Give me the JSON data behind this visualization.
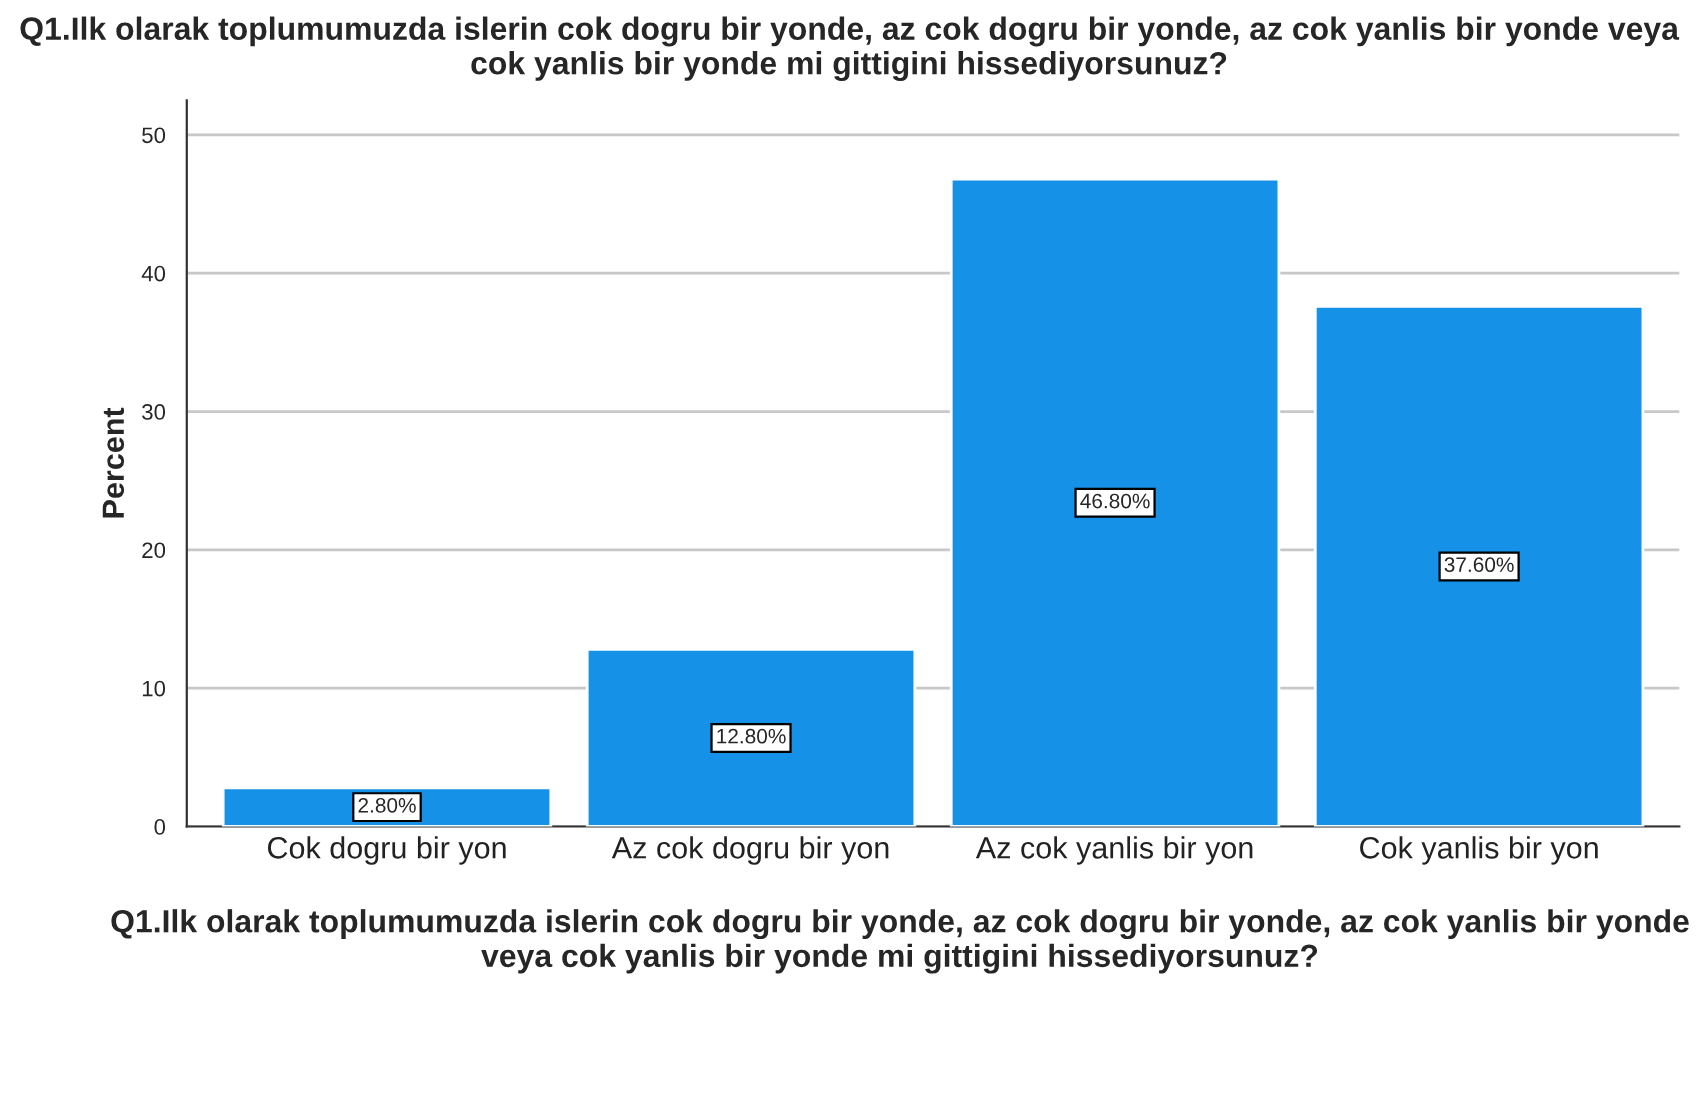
{
  "chart_data": {
    "type": "bar",
    "title": "Q1.Ilk olarak toplumumuzda islerin cok dogru bir yonde, az cok dogru bir yonde, az cok yanlis bir yonde veya cok yanlis bir yonde mi gittigini hissediyorsunuz?",
    "xlabel": "Q1.Ilk olarak toplumumuzda islerin cok dogru bir yonde, az cok dogru bir yonde, az cok yanlis bir yonde veya cok yanlis bir yonde mi gittigini hissediyorsunuz?",
    "ylabel": "Percent",
    "categories": [
      "Cok dogru bir yon",
      "Az cok dogru bir yon",
      "Az cok yanlis bir yon",
      "Cok yanlis bir yon"
    ],
    "values": [
      2.8,
      12.8,
      46.8,
      37.6
    ],
    "value_labels": [
      "2.80%",
      "12.80%",
      "46.80%",
      "37.60%"
    ],
    "color": "#1591e8",
    "ylim": [
      0,
      52.5
    ],
    "yticks": [
      0,
      10,
      20,
      30,
      40,
      50
    ],
    "grid": "y",
    "legend": false
  }
}
